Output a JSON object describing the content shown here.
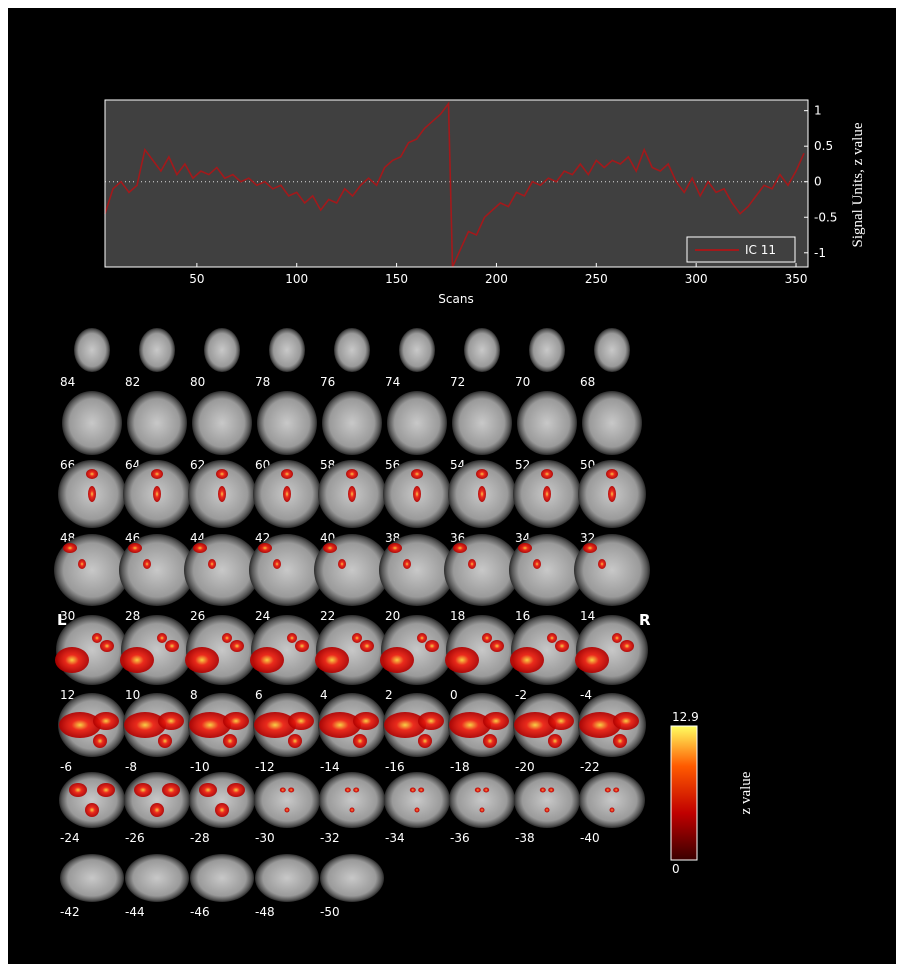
{
  "chart_data": {
    "type": "line",
    "xlabel": "Scans",
    "ylabel": "Signal Units, z value",
    "x": [
      4,
      8,
      12,
      16,
      20,
      24,
      28,
      32,
      36,
      40,
      44,
      48,
      52,
      56,
      60,
      64,
      68,
      72,
      76,
      80,
      84,
      88,
      92,
      96,
      100,
      104,
      108,
      112,
      116,
      120,
      124,
      128,
      132,
      136,
      140,
      144,
      148,
      152,
      156,
      160,
      164,
      168,
      172,
      176,
      178,
      182,
      186,
      190,
      194,
      198,
      202,
      206,
      210,
      214,
      218,
      222,
      226,
      230,
      234,
      238,
      242,
      246,
      250,
      254,
      258,
      262,
      266,
      270,
      274,
      278,
      282,
      286,
      290,
      294,
      298,
      302,
      306,
      310,
      314,
      318,
      322,
      326,
      330,
      334,
      338,
      342,
      346,
      350,
      354
    ],
    "series": [
      {
        "name": "IC 11",
        "color": "#a3191b",
        "values": [
          -0.45,
          -0.1,
          0.0,
          -0.15,
          -0.05,
          0.45,
          0.3,
          0.15,
          0.35,
          0.1,
          0.25,
          0.05,
          0.15,
          0.1,
          0.2,
          0.05,
          0.1,
          0.0,
          0.05,
          -0.05,
          0.0,
          -0.1,
          -0.05,
          -0.2,
          -0.15,
          -0.3,
          -0.2,
          -0.4,
          -0.25,
          -0.3,
          -0.1,
          -0.2,
          -0.05,
          0.05,
          -0.05,
          0.2,
          0.3,
          0.35,
          0.55,
          0.6,
          0.75,
          0.85,
          0.95,
          1.1,
          -1.2,
          -0.95,
          -0.7,
          -0.75,
          -0.5,
          -0.4,
          -0.3,
          -0.35,
          -0.15,
          -0.2,
          0.0,
          -0.05,
          0.05,
          0.0,
          0.15,
          0.1,
          0.25,
          0.1,
          0.3,
          0.2,
          0.3,
          0.25,
          0.35,
          0.15,
          0.45,
          0.2,
          0.15,
          0.25,
          0.0,
          -0.15,
          0.05,
          -0.2,
          0.0,
          -0.15,
          -0.1,
          -0.3,
          -0.45,
          -0.35,
          -0.2,
          -0.05,
          -0.1,
          0.1,
          -0.05,
          0.15,
          0.4
        ]
      }
    ],
    "xlim": [
      4,
      356
    ],
    "xticks": [
      50,
      100,
      150,
      200,
      250,
      300,
      350
    ],
    "ylim": [
      -1.2,
      1.15
    ],
    "yticks": [
      -1,
      -0.5,
      0,
      0.5,
      1
    ],
    "zero_line": true,
    "legend": "lower right"
  },
  "montage": {
    "slice_labels": [
      84,
      82,
      80,
      78,
      76,
      74,
      72,
      70,
      68,
      66,
      64,
      62,
      60,
      58,
      56,
      54,
      52,
      50,
      48,
      46,
      44,
      42,
      40,
      38,
      36,
      34,
      32,
      30,
      28,
      26,
      24,
      22,
      20,
      18,
      16,
      14,
      12,
      10,
      8,
      6,
      4,
      2,
      0,
      -2,
      -4,
      -6,
      -8,
      -10,
      -12,
      -14,
      -16,
      -18,
      -20,
      -22,
      -24,
      -26,
      -28,
      -30,
      -32,
      -34,
      -36,
      -38,
      -40,
      -42,
      -44,
      -46,
      -48,
      -50
    ],
    "left": "L",
    "right": "R"
  },
  "colorbar": {
    "label": "z value",
    "lim": [
      0,
      12.9
    ],
    "ticks": [
      0,
      12.9
    ]
  }
}
